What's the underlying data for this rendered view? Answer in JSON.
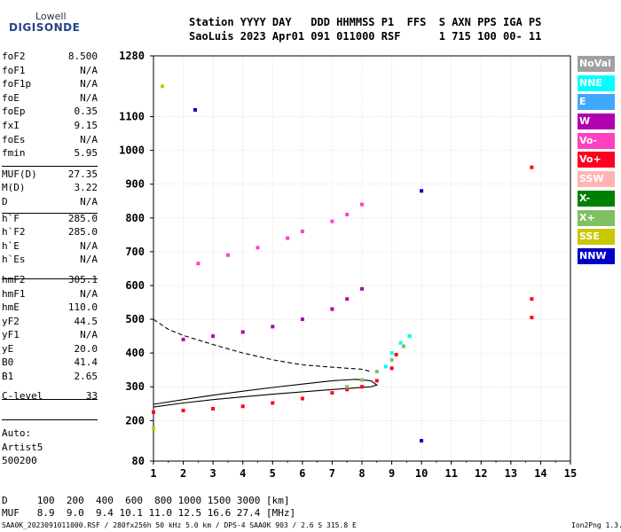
{
  "logo": {
    "top": "Lowell",
    "bottom": "DIGISONDE"
  },
  "header": {
    "line1": "Station YYYY DAY   DDD HHMMSS P1  FFS  S AXN PPS IGA PS",
    "line2": "SaoLuis 2023 Apr01 091 011000 RSF      1 715 100 00- 11"
  },
  "params": [
    {
      "label": "foF2",
      "value": "8.500"
    },
    {
      "label": "foF1",
      "value": "N/A"
    },
    {
      "label": "foF1p",
      "value": "N/A"
    },
    {
      "label": "foE",
      "value": "N/A"
    },
    {
      "label": "foEp",
      "value": "0.35"
    },
    {
      "label": "fxI",
      "value": "9.15"
    },
    {
      "label": "foEs",
      "value": "N/A"
    },
    {
      "label": "fmin",
      "value": "5.95"
    },
    {
      "label": "MUF(D)",
      "value": "27.35"
    },
    {
      "label": "M(D)",
      "value": "3.22"
    },
    {
      "label": "D",
      "value": "N/A"
    },
    {
      "label": "h`F",
      "value": "285.0"
    },
    {
      "label": "h`F2",
      "value": "285.0"
    },
    {
      "label": "h`E",
      "value": "N/A"
    },
    {
      "label": "h`Es",
      "value": "N/A"
    },
    {
      "label": "hmF2",
      "value": "305.1"
    },
    {
      "label": "hmF1",
      "value": "N/A"
    },
    {
      "label": "hmE",
      "value": "110.0"
    },
    {
      "label": "yF2",
      "value": "44.5"
    },
    {
      "label": "yF1",
      "value": "N/A"
    },
    {
      "label": "yE",
      "value": "20.0"
    },
    {
      "label": "B0",
      "value": "41.4"
    },
    {
      "label": "B1",
      "value": "2.65"
    },
    {
      "label": "C-level",
      "value": "33"
    }
  ],
  "auto": {
    "line1": "Auto:",
    "line2": "Artist5",
    "line3": "500200"
  },
  "distance_row": "D     100  200  400  600  800 1000 1500 3000 [km]",
  "muf_row": "MUF   8.9  9.0  9.4 10.1 11.0 12.5 16.6 27.4 [MHz]",
  "footer_left": "SAA0K_2023091011000.RSF / 280fx256h 50 kHz 5.0 km / DPS-4 SAA0K 903 / 2.6 S 315.8 E",
  "footer_right": "Ion2Png 1.3.17",
  "legend": [
    {
      "label": "NoVal",
      "color": "#a0a0a0"
    },
    {
      "label": "NNE",
      "color": "#00ffff"
    },
    {
      "label": "E",
      "color": "#40a8ff"
    },
    {
      "label": "W",
      "color": "#b000b0"
    },
    {
      "label": "Vo-",
      "color": "#ff40c0"
    },
    {
      "label": "Vo+",
      "color": "#ff0020"
    },
    {
      "label": "SSW",
      "color": "#ffb4b4"
    },
    {
      "label": "X-",
      "color": "#008000"
    },
    {
      "label": "X+",
      "color": "#80c060"
    },
    {
      "label": "SSE",
      "color": "#c8c800"
    },
    {
      "label": "NNW",
      "color": "#0000c8"
    }
  ],
  "chart_data": {
    "type": "scatter",
    "x_ticks": [
      "1",
      "2",
      "3",
      "4",
      "5",
      "6",
      "7",
      "8",
      "9",
      "10",
      "11",
      "12",
      "13",
      "14",
      "15"
    ],
    "y_ticks": [
      "80",
      "200",
      "300",
      "400",
      "500",
      "600",
      "700",
      "800",
      "900",
      "1000",
      "1100",
      "1280"
    ],
    "xlim": [
      1,
      15
    ],
    "ylim": [
      80,
      1280
    ],
    "grid": true,
    "series": [
      {
        "name": "Vo+",
        "x": [
          1.0,
          2.0,
          3.0,
          4.0,
          5.0,
          6.0,
          7.0,
          7.5,
          8.0,
          8.5,
          9.0,
          9.15
        ],
        "y": [
          225,
          230,
          235,
          242,
          252,
          265,
          282,
          292,
          300,
          318,
          355,
          395
        ]
      },
      {
        "name": "X+",
        "x": [
          7.5,
          8.0,
          8.5,
          9.0,
          9.4,
          9.6
        ],
        "y": [
          300,
          320,
          345,
          380,
          420,
          450
        ]
      },
      {
        "name": "NNE",
        "x": [
          8.8,
          9.0,
          9.3,
          9.6
        ],
        "y": [
          360,
          400,
          430,
          450
        ]
      },
      {
        "name": "W",
        "x": [
          2.0,
          3.0,
          4.0,
          5.0,
          6.0,
          7.0,
          7.5,
          8.0
        ],
        "y": [
          440,
          450,
          462,
          478,
          500,
          530,
          560,
          590
        ]
      },
      {
        "name": "Vo-",
        "x": [
          2.5,
          3.5,
          4.5,
          5.5,
          6.0,
          7.0,
          7.5,
          8.0
        ],
        "y": [
          665,
          690,
          712,
          740,
          760,
          790,
          810,
          840
        ]
      },
      {
        "name": "NNW",
        "x": [
          2.4,
          10.0,
          10.0
        ],
        "y": [
          1120,
          880,
          140
        ]
      },
      {
        "name": "Vo+",
        "x": [
          13.7,
          13.7,
          13.7
        ],
        "y": [
          950,
          560,
          505
        ]
      },
      {
        "name": "SSE",
        "x": [
          1.3,
          1.0
        ],
        "y": [
          1190,
          175
        ]
      }
    ],
    "profile_solid": {
      "x": [
        1.0,
        2.0,
        3.0,
        4.0,
        5.0,
        6.0,
        7.0,
        7.8,
        8.3,
        8.5,
        8.3,
        7.8,
        7.0,
        6.0,
        5.0,
        4.0,
        3.0,
        2.0,
        1.0
      ],
      "y": [
        240,
        252,
        262,
        270,
        278,
        285,
        292,
        297,
        300,
        305,
        318,
        322,
        318,
        308,
        298,
        287,
        275,
        262,
        248
      ]
    },
    "profile_dashed": {
      "x": [
        1.0,
        1.5,
        2.0,
        3.0,
        4.0,
        5.0,
        6.0,
        7.0,
        7.5,
        8.0,
        8.3
      ],
      "y": [
        500,
        470,
        452,
        425,
        400,
        380,
        365,
        358,
        355,
        352,
        345
      ]
    }
  }
}
